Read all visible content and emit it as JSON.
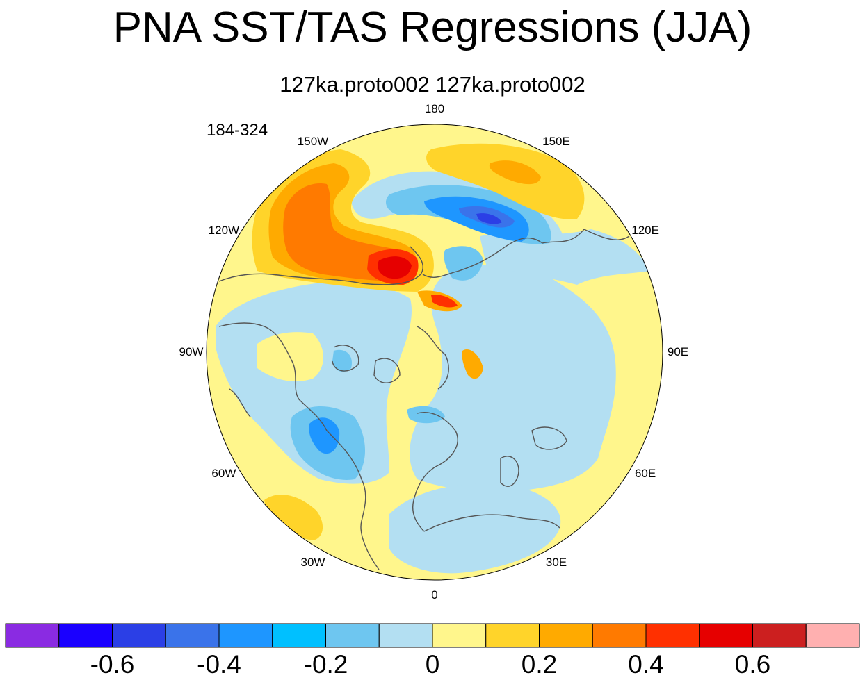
{
  "figure": {
    "title": "PNA SST/TAS Regressions (JJA)",
    "subtitle": "127ka.proto002  127ka.proto002",
    "year_range": "184-324"
  },
  "map": {
    "projection": "north polar stereographic",
    "longitude_labels": [
      {
        "lon": 180,
        "text": "180"
      },
      {
        "lon": -150,
        "text": "150W"
      },
      {
        "lon": 150,
        "text": "150E"
      },
      {
        "lon": -120,
        "text": "120W"
      },
      {
        "lon": 120,
        "text": "120E"
      },
      {
        "lon": -90,
        "text": "90W"
      },
      {
        "lon": 90,
        "text": "90E"
      },
      {
        "lon": -60,
        "text": "60W"
      },
      {
        "lon": 60,
        "text": "60E"
      },
      {
        "lon": -30,
        "text": "30W"
      },
      {
        "lon": 30,
        "text": "30E"
      },
      {
        "lon": 0,
        "text": "0"
      }
    ],
    "coastline_color": "#555555"
  },
  "colorbar": {
    "colors": [
      "#8a2be2",
      "#1a00ff",
      "#2b3fe6",
      "#3a73ea",
      "#1e96ff",
      "#00c0ff",
      "#6ec6f0",
      "#b3dff2",
      "#fff68c",
      "#ffd42a",
      "#ffaa00",
      "#ff7a00",
      "#ff3000",
      "#e60000",
      "#cc1f1f",
      "#ffb0b0"
    ],
    "tick_labels": [
      "-0.6",
      "-0.4",
      "-0.2",
      "0",
      "0.2",
      "0.4",
      "0.6"
    ],
    "tick_values": [
      -0.6,
      -0.4,
      -0.2,
      0,
      0.2,
      0.4,
      0.6
    ],
    "min": -0.8,
    "max": 0.8,
    "step": 0.1
  }
}
